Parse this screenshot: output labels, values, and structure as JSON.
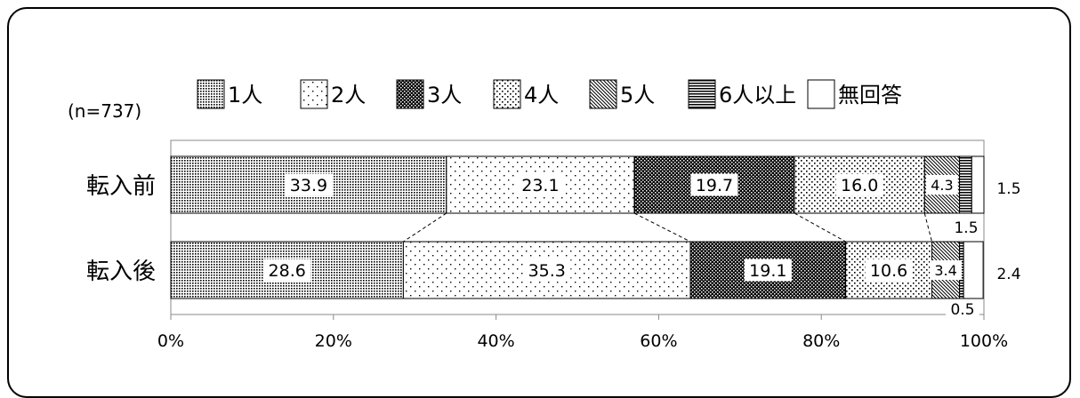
{
  "chart_data": {
    "type": "bar",
    "orientation": "horizontal",
    "stacked": true,
    "sample_label": "(n=737)",
    "categories": [
      "転入前",
      "転入後"
    ],
    "series": [
      {
        "name": "1人",
        "values": [
          33.9,
          28.6
        ],
        "pattern": "dense-dots"
      },
      {
        "name": "2人",
        "values": [
          23.1,
          35.3
        ],
        "pattern": "sparse-dots"
      },
      {
        "name": "3人",
        "values": [
          19.7,
          19.1
        ],
        "pattern": "dark-check"
      },
      {
        "name": "4人",
        "values": [
          16.0,
          10.6
        ],
        "pattern": "medium-dots"
      },
      {
        "name": "5人",
        "values": [
          4.3,
          3.4
        ],
        "pattern": "diagonal"
      },
      {
        "name": "6人以上",
        "values": [
          1.5,
          0.5
        ],
        "pattern": "horizontal-lines"
      },
      {
        "name": "無回答",
        "values": [
          1.5,
          2.4
        ],
        "pattern": "white"
      }
    ],
    "data_labels": [
      [
        "33.9",
        "23.1",
        "19.7",
        "16.0",
        "4.3",
        "1.5",
        "1.5"
      ],
      [
        "28.6",
        "35.3",
        "19.1",
        "10.6",
        "3.4",
        "0.5",
        "2.4"
      ]
    ],
    "x_ticks": [
      "0%",
      "20%",
      "40%",
      "60%",
      "80%",
      "100%"
    ],
    "xlim": [
      0,
      100
    ],
    "legend": "top",
    "grid": false,
    "colors": {
      "ink": "#000000",
      "paper": "#ffffff"
    }
  }
}
